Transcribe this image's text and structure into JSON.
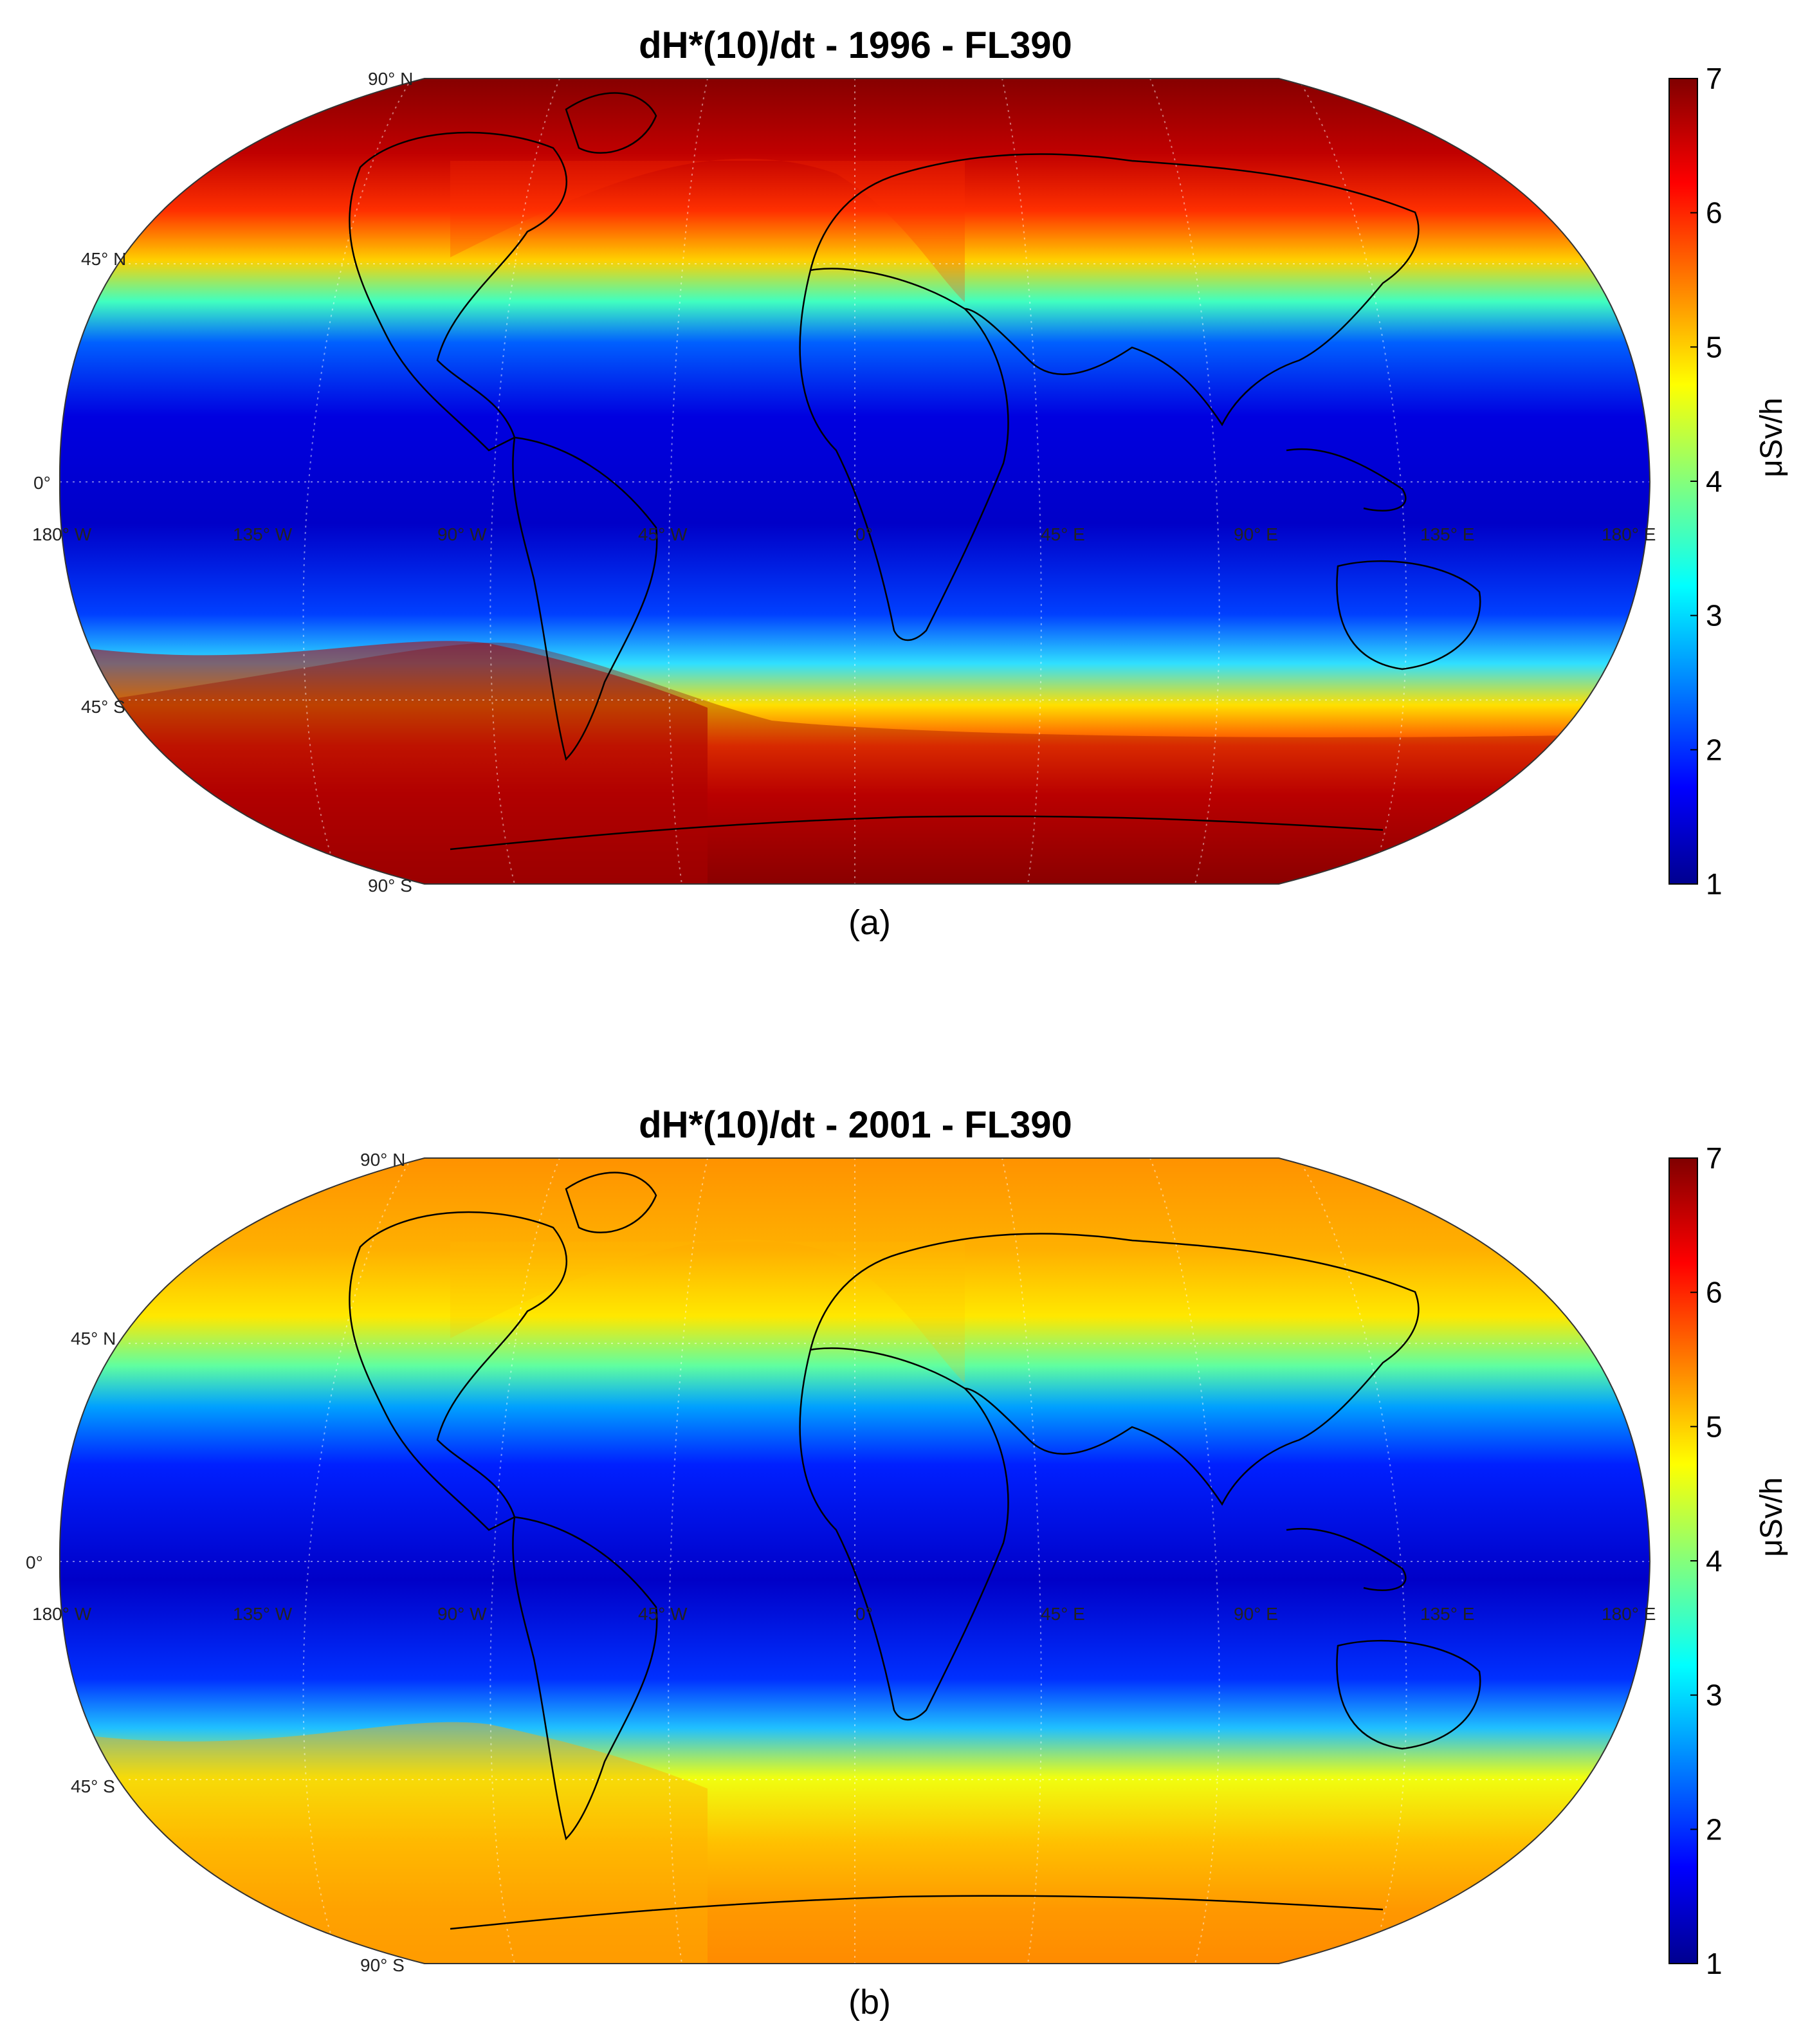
{
  "panels": [
    {
      "title": "dH*(10)/dt - 1996 - FL390",
      "caption": "(a)",
      "colorbar": {
        "min": 1,
        "max": 7,
        "ticks": [
          "1",
          "2",
          "3",
          "4",
          "5",
          "6",
          "7"
        ],
        "unit": "μSv/h"
      },
      "polar_value": 7.0,
      "equator_value": 1.2
    },
    {
      "title": "dH*(10)/dt - 2001 - FL390",
      "caption": "(b)",
      "colorbar": {
        "min": 1,
        "max": 7,
        "ticks": [
          "1",
          "2",
          "3",
          "4",
          "5",
          "6",
          "7"
        ],
        "unit": "μSv/h"
      },
      "polar_value": 5.6,
      "equator_value": 1.2
    }
  ],
  "latitude_labels": [
    "90° N",
    "45° N",
    "0°",
    "45° S",
    "90° S"
  ],
  "longitude_labels": [
    "180° W",
    "135° W",
    "90° W",
    "45° W",
    "0°",
    "45° E",
    "90° E",
    "135° E",
    "180° E"
  ],
  "colormap": [
    "#00008f",
    "#0000ff",
    "#00ffff",
    "#ffff00",
    "#ff0000",
    "#800000"
  ]
}
